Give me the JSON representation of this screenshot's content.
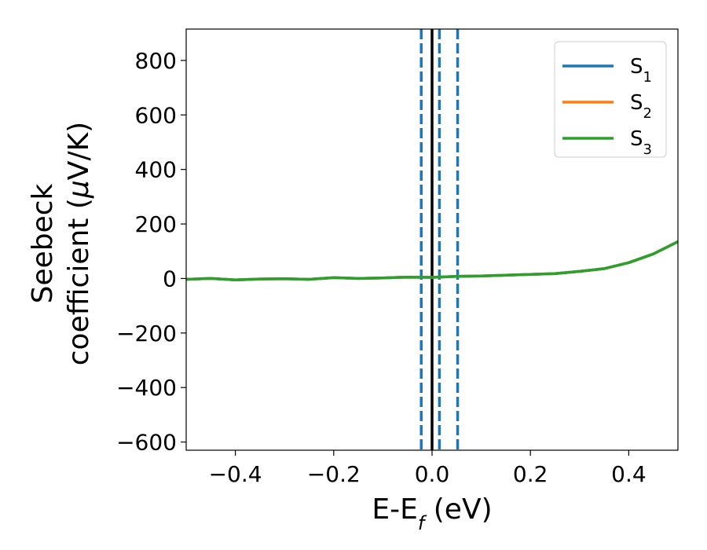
{
  "chart_data": {
    "type": "line",
    "xlabel": "E-E",
    "xlabel_sub": "f",
    "xlabel_unit": " (eV)",
    "ylabel_line1": "Seebeck",
    "ylabel_line2": "coefficient  (",
    "ylabel_mu": "μ",
    "ylabel_unit": "V/K)",
    "xlim": [
      -0.5,
      0.5
    ],
    "ylim": [
      -630,
      915
    ],
    "xticks": [
      -0.4,
      -0.2,
      0.0,
      0.2,
      0.4
    ],
    "xtick_labels": [
      "−0.4",
      "−0.2",
      "0.0",
      "0.2",
      "0.4"
    ],
    "yticks": [
      800,
      600,
      400,
      200,
      0,
      -200,
      -400,
      -600
    ],
    "ytick_labels": [
      "800",
      "600",
      "400",
      "200",
      "0",
      "−200",
      "−400",
      "−600"
    ],
    "legend_position": "top-right",
    "legend": [
      {
        "base": "S",
        "sub": "1",
        "color": "#1f77b4"
      },
      {
        "base": "S",
        "sub": "2",
        "color": "#ff7f0e"
      },
      {
        "base": "S",
        "sub": "3",
        "color": "#2ca02c"
      }
    ],
    "reference_lines": {
      "solid": {
        "x": 0.0,
        "color": "#000000"
      },
      "dashed": {
        "x": [
          -0.022,
          0.015,
          0.052
        ],
        "color": "#1f77b4"
      }
    },
    "series": [
      {
        "name": "S1",
        "color": "#1f77b4",
        "x": [
          -0.5,
          -0.45,
          -0.4,
          -0.35,
          -0.3,
          -0.25,
          -0.2,
          -0.15,
          -0.1,
          -0.05,
          0.0,
          0.05,
          0.1,
          0.15,
          0.2,
          0.25,
          0.3,
          0.35,
          0.4,
          0.45,
          0.5
        ],
        "y": [
          -3,
          0,
          -5,
          -2,
          -1,
          -3,
          3,
          0,
          2,
          5,
          4,
          8,
          9,
          12,
          15,
          18,
          26,
          36,
          58,
          90,
          135
        ]
      },
      {
        "name": "S2",
        "color": "#ff7f0e",
        "x": [
          -0.5,
          -0.45,
          -0.4,
          -0.35,
          -0.3,
          -0.25,
          -0.2,
          -0.15,
          -0.1,
          -0.05,
          0.0,
          0.05,
          0.1,
          0.15,
          0.2,
          0.25,
          0.3,
          0.35,
          0.4,
          0.45,
          0.5
        ],
        "y": [
          -3,
          0,
          -5,
          -2,
          -1,
          -3,
          3,
          0,
          2,
          5,
          4,
          8,
          9,
          12,
          15,
          18,
          26,
          36,
          58,
          90,
          135
        ]
      },
      {
        "name": "S3",
        "color": "#2ca02c",
        "x": [
          -0.5,
          -0.45,
          -0.4,
          -0.35,
          -0.3,
          -0.25,
          -0.2,
          -0.15,
          -0.1,
          -0.05,
          0.0,
          0.05,
          0.1,
          0.15,
          0.2,
          0.25,
          0.3,
          0.35,
          0.4,
          0.45,
          0.5
        ],
        "y": [
          -3,
          0,
          -5,
          -2,
          -1,
          -3,
          3,
          0,
          2,
          5,
          4,
          8,
          9,
          12,
          15,
          18,
          26,
          36,
          58,
          90,
          135
        ]
      }
    ]
  }
}
